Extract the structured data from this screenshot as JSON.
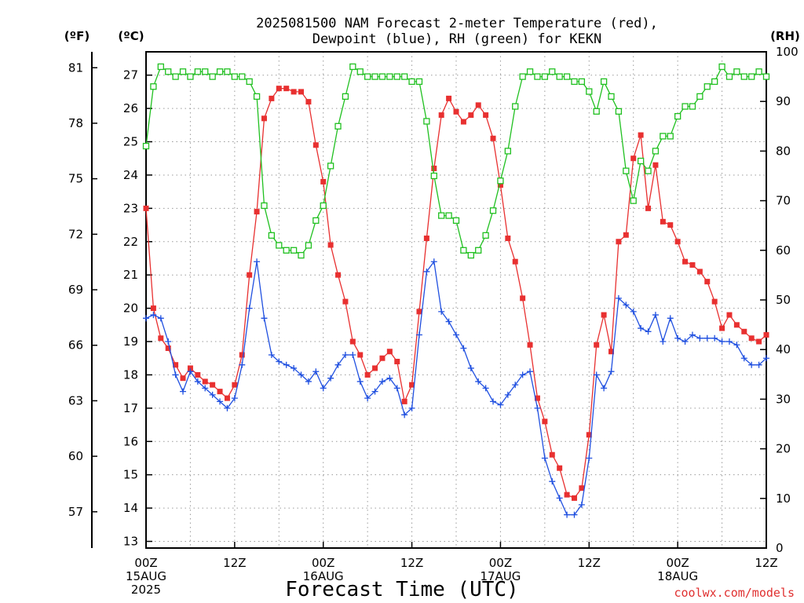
{
  "chart_data": {
    "type": "line",
    "title_line1": "2025081500 NAM Forecast 2-meter Temperature (red),",
    "title_line2": "Dewpoint (blue), RH (green) for KEKN",
    "unit_f": "(ºF)",
    "unit_c": "(ºC)",
    "unit_rh": "(RH)",
    "xlabel": "Forecast Time (UTC)",
    "credit": "coolwx.com/models",
    "x_range_hours": [
      0,
      84
    ],
    "ylim_c": [
      12.8,
      27.7
    ],
    "ylim_rh": [
      0,
      100
    ],
    "grid": true,
    "ticks_f": [
      "81",
      "78",
      "75",
      "72",
      "69",
      "66",
      "63",
      "60",
      "57"
    ],
    "ticks_c": [
      "27",
      "26",
      "25",
      "24",
      "23",
      "22",
      "21",
      "20",
      "19",
      "18",
      "17",
      "16",
      "15",
      "14",
      "13"
    ],
    "ticks_rh": [
      "100",
      "90",
      "80",
      "70",
      "60",
      "50",
      "40",
      "30",
      "20",
      "10",
      "0"
    ],
    "x_ticks": [
      {
        "hour": 0,
        "lines": [
          "00Z",
          "15AUG",
          "2025"
        ]
      },
      {
        "hour": 12,
        "lines": [
          "12Z"
        ]
      },
      {
        "hour": 24,
        "lines": [
          "00Z",
          "16AUG"
        ]
      },
      {
        "hour": 36,
        "lines": [
          "12Z"
        ]
      },
      {
        "hour": 48,
        "lines": [
          "00Z",
          "17AUG"
        ]
      },
      {
        "hour": 60,
        "lines": [
          "12Z"
        ]
      },
      {
        "hour": 72,
        "lines": [
          "00Z",
          "18AUG"
        ]
      },
      {
        "hour": 84,
        "lines": [
          "12Z"
        ]
      }
    ],
    "series": [
      {
        "name": "Temperature",
        "units": "C",
        "color": "#e83030",
        "marker": "filled-square",
        "values": [
          23.0,
          20.0,
          19.1,
          18.8,
          18.3,
          17.9,
          18.2,
          18.0,
          17.8,
          17.7,
          17.5,
          17.3,
          17.7,
          18.6,
          21.0,
          22.9,
          25.7,
          26.3,
          26.6,
          26.6,
          26.5,
          26.5,
          26.2,
          24.9,
          23.8,
          21.9,
          21.0,
          20.2,
          19.0,
          18.6,
          18.0,
          18.2,
          18.5,
          18.7,
          18.4,
          17.2,
          17.7,
          19.9,
          22.1,
          24.2,
          25.8,
          26.3,
          25.9,
          25.6,
          25.8,
          26.1,
          25.8,
          25.1,
          23.7,
          22.1,
          21.4,
          20.3,
          18.9,
          17.3,
          16.6,
          15.6,
          15.2,
          14.4,
          14.3,
          14.6,
          16.2,
          18.9,
          19.8,
          18.7,
          22.0,
          22.2,
          24.5,
          25.2,
          23.0,
          24.3,
          22.6,
          22.5,
          22.0,
          21.4,
          21.3,
          21.1,
          20.8,
          20.2,
          19.4,
          19.8,
          19.5,
          19.3,
          19.1,
          19.0,
          19.2
        ]
      },
      {
        "name": "Dewpoint",
        "units": "C",
        "color": "#2050e0",
        "marker": "plus",
        "values": [
          19.7,
          19.8,
          19.7,
          19.0,
          18.0,
          17.5,
          18.1,
          17.8,
          17.6,
          17.4,
          17.2,
          17.0,
          17.3,
          18.3,
          20.0,
          21.4,
          19.7,
          18.6,
          18.4,
          18.3,
          18.2,
          18.0,
          17.8,
          18.1,
          17.6,
          17.9,
          18.3,
          18.6,
          18.6,
          17.8,
          17.3,
          17.5,
          17.8,
          17.9,
          17.6,
          16.8,
          17.0,
          19.2,
          21.1,
          21.4,
          19.9,
          19.6,
          19.2,
          18.8,
          18.2,
          17.8,
          17.6,
          17.2,
          17.1,
          17.4,
          17.7,
          18.0,
          18.1,
          17.0,
          15.5,
          14.8,
          14.3,
          13.8,
          13.8,
          14.1,
          15.5,
          18.0,
          17.6,
          18.1,
          20.3,
          20.1,
          19.9,
          19.4,
          19.3,
          19.8,
          19.0,
          19.7,
          19.1,
          19.0,
          19.2,
          19.1,
          19.1,
          19.1,
          19.0,
          19.0,
          18.9,
          18.5,
          18.3,
          18.3,
          18.5
        ]
      },
      {
        "name": "RH",
        "units": "%",
        "color": "#20c020",
        "marker": "open-square",
        "values": [
          81,
          93,
          97,
          96,
          95,
          96,
          95,
          96,
          96,
          95,
          96,
          96,
          95,
          95,
          94,
          91,
          69,
          63,
          61,
          60,
          60,
          59,
          61,
          66,
          69,
          77,
          85,
          91,
          97,
          96,
          95,
          95,
          95,
          95,
          95,
          95,
          94,
          94,
          86,
          75,
          67,
          67,
          66,
          60,
          59,
          60,
          63,
          68,
          74,
          80,
          89,
          95,
          96,
          95,
          95,
          96,
          95,
          95,
          94,
          94,
          92,
          88,
          94,
          91,
          88,
          76,
          70,
          78,
          76,
          80,
          83,
          83,
          87,
          89,
          89,
          91,
          93,
          94,
          97,
          95,
          96,
          95,
          95,
          96,
          95
        ]
      }
    ]
  }
}
